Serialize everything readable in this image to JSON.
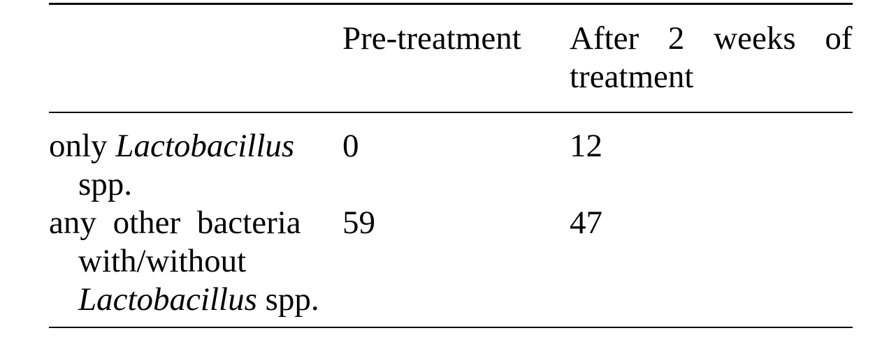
{
  "table": {
    "header": {
      "pre_treatment": "Pre-treatment",
      "after_line1": "After 2 weeks of",
      "after_line2": "treatment"
    },
    "rows": [
      {
        "label_line1_prefix": "only ",
        "label_line1_species": "Lactobacillus",
        "label_line2": "spp.",
        "pre_treatment": "0",
        "after_treatment": "12"
      },
      {
        "label_line1": "any other bacteria",
        "label_line2": "with/without",
        "label_line3_species": "Lactobacillus",
        "label_line3_suffix": " spp.",
        "pre_treatment": "59",
        "after_treatment": "47"
      }
    ]
  },
  "chart_data": {
    "type": "table",
    "columns": [
      "",
      "Pre-treatment",
      "After 2 weeks of treatment"
    ],
    "rows": [
      [
        "only Lactobacillus spp.",
        0,
        12
      ],
      [
        "any other bacteria with/without Lactobacillus spp.",
        59,
        47
      ]
    ]
  },
  "colors": {
    "background": "#ffffff",
    "text": "#000000",
    "rule": "#0a0a0a"
  }
}
